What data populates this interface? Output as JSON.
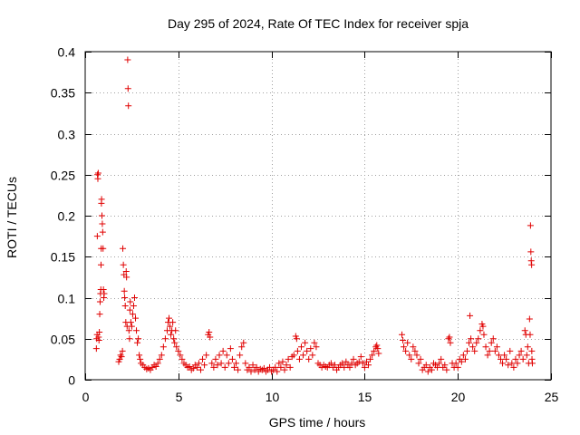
{
  "chart_data": {
    "type": "scatter",
    "title": "Day 295 of 2024, Rate Of TEC Index for receiver spja",
    "xlabel": "GPS time / hours",
    "ylabel": "ROTI / TECUs",
    "xlim": [
      0,
      25
    ],
    "ylim": [
      0,
      0.4
    ],
    "xticks": [
      0,
      5,
      10,
      15,
      20,
      25
    ],
    "xtick_labels": [
      "0",
      "5",
      "10",
      "15",
      "20",
      "25"
    ],
    "yticks": [
      0,
      0.05,
      0.1,
      0.15,
      0.2,
      0.25,
      0.3,
      0.35,
      0.4
    ],
    "ytick_labels": [
      "0",
      "0.05",
      "0.1",
      "0.15",
      "0.2",
      "0.25",
      "0.3",
      "0.35",
      "0.4"
    ],
    "grid": true,
    "marker": "+",
    "marker_color": "#e00000",
    "series": [
      {
        "name": "ROTI",
        "points": [
          [
            0.6,
            0.038
          ],
          [
            0.62,
            0.05
          ],
          [
            0.64,
            0.055
          ],
          [
            0.65,
            0.175
          ],
          [
            0.66,
            0.25
          ],
          [
            0.68,
            0.245
          ],
          [
            0.7,
            0.252
          ],
          [
            0.72,
            0.052
          ],
          [
            0.74,
            0.048
          ],
          [
            0.76,
            0.058
          ],
          [
            0.78,
            0.08
          ],
          [
            0.8,
            0.095
          ],
          [
            0.82,
            0.105
          ],
          [
            0.84,
            0.11
          ],
          [
            0.85,
            0.14
          ],
          [
            0.86,
            0.16
          ],
          [
            0.87,
            0.215
          ],
          [
            0.88,
            0.22
          ],
          [
            0.9,
            0.2
          ],
          [
            0.92,
            0.19
          ],
          [
            0.94,
            0.18
          ],
          [
            0.96,
            0.16
          ],
          [
            0.98,
            0.11
          ],
          [
            1.0,
            0.1
          ],
          [
            1.02,
            0.105
          ],
          [
            1.8,
            0.022
          ],
          [
            1.85,
            0.025
          ],
          [
            1.9,
            0.03
          ],
          [
            1.95,
            0.028
          ],
          [
            2.0,
            0.035
          ],
          [
            2.02,
            0.16
          ],
          [
            2.05,
            0.14
          ],
          [
            2.08,
            0.128
          ],
          [
            2.1,
            0.108
          ],
          [
            2.12,
            0.1
          ],
          [
            2.15,
            0.09
          ],
          [
            2.18,
            0.07
          ],
          [
            2.2,
            0.132
          ],
          [
            2.22,
            0.125
          ],
          [
            2.25,
            0.065
          ],
          [
            2.28,
            0.39
          ],
          [
            2.3,
            0.355
          ],
          [
            2.32,
            0.334
          ],
          [
            2.35,
            0.06
          ],
          [
            2.38,
            0.05
          ],
          [
            2.4,
            0.085
          ],
          [
            2.42,
            0.095
          ],
          [
            2.45,
            0.07
          ],
          [
            2.5,
            0.065
          ],
          [
            2.55,
            0.08
          ],
          [
            2.6,
            0.09
          ],
          [
            2.65,
            0.1
          ],
          [
            2.7,
            0.075
          ],
          [
            2.75,
            0.06
          ],
          [
            2.8,
            0.045
          ],
          [
            2.85,
            0.05
          ],
          [
            2.9,
            0.03
          ],
          [
            2.95,
            0.025
          ],
          [
            3.0,
            0.02
          ],
          [
            3.1,
            0.018
          ],
          [
            3.2,
            0.015
          ],
          [
            3.3,
            0.013
          ],
          [
            3.4,
            0.014
          ],
          [
            3.5,
            0.012
          ],
          [
            3.6,
            0.015
          ],
          [
            3.7,
            0.018
          ],
          [
            3.8,
            0.016
          ],
          [
            3.9,
            0.02
          ],
          [
            4.0,
            0.025
          ],
          [
            4.1,
            0.03
          ],
          [
            4.2,
            0.04
          ],
          [
            4.3,
            0.05
          ],
          [
            4.4,
            0.06
          ],
          [
            4.45,
            0.07
          ],
          [
            4.5,
            0.075
          ],
          [
            4.55,
            0.065
          ],
          [
            4.6,
            0.055
          ],
          [
            4.65,
            0.06
          ],
          [
            4.7,
            0.07
          ],
          [
            4.75,
            0.05
          ],
          [
            4.8,
            0.045
          ],
          [
            4.85,
            0.06
          ],
          [
            4.9,
            0.04
          ],
          [
            5.0,
            0.035
          ],
          [
            5.1,
            0.03
          ],
          [
            5.2,
            0.025
          ],
          [
            5.3,
            0.02
          ],
          [
            5.4,
            0.018
          ],
          [
            5.5,
            0.015
          ],
          [
            5.6,
            0.016
          ],
          [
            5.7,
            0.012
          ],
          [
            5.8,
            0.014
          ],
          [
            5.9,
            0.018
          ],
          [
            6.0,
            0.015
          ],
          [
            6.1,
            0.02
          ],
          [
            6.2,
            0.012
          ],
          [
            6.3,
            0.025
          ],
          [
            6.4,
            0.018
          ],
          [
            6.5,
            0.03
          ],
          [
            6.6,
            0.055
          ],
          [
            6.65,
            0.058
          ],
          [
            6.7,
            0.052
          ],
          [
            6.8,
            0.02
          ],
          [
            6.9,
            0.015
          ],
          [
            7.0,
            0.025
          ],
          [
            7.1,
            0.018
          ],
          [
            7.2,
            0.03
          ],
          [
            7.3,
            0.02
          ],
          [
            7.4,
            0.035
          ],
          [
            7.5,
            0.015
          ],
          [
            7.6,
            0.03
          ],
          [
            7.7,
            0.02
          ],
          [
            7.8,
            0.038
          ],
          [
            7.9,
            0.025
          ],
          [
            8.0,
            0.015
          ],
          [
            8.1,
            0.02
          ],
          [
            8.2,
            0.012
          ],
          [
            8.3,
            0.03
          ],
          [
            8.4,
            0.04
          ],
          [
            8.5,
            0.045
          ],
          [
            8.6,
            0.02
          ],
          [
            8.7,
            0.012
          ],
          [
            8.8,
            0.015
          ],
          [
            8.9,
            0.01
          ],
          [
            9.0,
            0.018
          ],
          [
            9.1,
            0.012
          ],
          [
            9.2,
            0.015
          ],
          [
            9.3,
            0.01
          ],
          [
            9.4,
            0.013
          ],
          [
            9.5,
            0.012
          ],
          [
            9.6,
            0.014
          ],
          [
            9.7,
            0.01
          ],
          [
            9.8,
            0.012
          ],
          [
            9.9,
            0.015
          ],
          [
            10.0,
            0.01
          ],
          [
            10.1,
            0.012
          ],
          [
            10.2,
            0.015
          ],
          [
            10.3,
            0.01
          ],
          [
            10.4,
            0.02
          ],
          [
            10.5,
            0.015
          ],
          [
            10.6,
            0.022
          ],
          [
            10.7,
            0.012
          ],
          [
            10.8,
            0.018
          ],
          [
            10.9,
            0.025
          ],
          [
            11.0,
            0.015
          ],
          [
            11.1,
            0.028
          ],
          [
            11.2,
            0.03
          ],
          [
            11.3,
            0.053
          ],
          [
            11.35,
            0.05
          ],
          [
            11.4,
            0.035
          ],
          [
            11.5,
            0.025
          ],
          [
            11.6,
            0.04
          ],
          [
            11.7,
            0.03
          ],
          [
            11.8,
            0.045
          ],
          [
            11.9,
            0.035
          ],
          [
            12.0,
            0.025
          ],
          [
            12.1,
            0.038
          ],
          [
            12.2,
            0.03
          ],
          [
            12.3,
            0.045
          ],
          [
            12.4,
            0.04
          ],
          [
            12.5,
            0.02
          ],
          [
            12.6,
            0.018
          ],
          [
            12.7,
            0.015
          ],
          [
            12.8,
            0.018
          ],
          [
            12.9,
            0.016
          ],
          [
            13.0,
            0.015
          ],
          [
            13.1,
            0.018
          ],
          [
            13.2,
            0.02
          ],
          [
            13.3,
            0.015
          ],
          [
            13.4,
            0.018
          ],
          [
            13.5,
            0.012
          ],
          [
            13.6,
            0.015
          ],
          [
            13.7,
            0.018
          ],
          [
            13.8,
            0.02
          ],
          [
            13.9,
            0.015
          ],
          [
            14.0,
            0.022
          ],
          [
            14.1,
            0.018
          ],
          [
            14.2,
            0.015
          ],
          [
            14.3,
            0.02
          ],
          [
            14.4,
            0.025
          ],
          [
            14.5,
            0.018
          ],
          [
            14.6,
            0.02
          ],
          [
            14.7,
            0.022
          ],
          [
            14.8,
            0.028
          ],
          [
            14.9,
            0.02
          ],
          [
            15.0,
            0.015
          ],
          [
            15.1,
            0.022
          ],
          [
            15.2,
            0.018
          ],
          [
            15.3,
            0.025
          ],
          [
            15.4,
            0.03
          ],
          [
            15.5,
            0.035
          ],
          [
            15.6,
            0.04
          ],
          [
            15.65,
            0.042
          ],
          [
            15.7,
            0.038
          ],
          [
            15.75,
            0.032
          ],
          [
            17.0,
            0.055
          ],
          [
            17.05,
            0.048
          ],
          [
            17.1,
            0.04
          ],
          [
            17.2,
            0.035
          ],
          [
            17.3,
            0.045
          ],
          [
            17.4,
            0.03
          ],
          [
            17.5,
            0.025
          ],
          [
            17.6,
            0.04
          ],
          [
            17.7,
            0.035
          ],
          [
            17.8,
            0.03
          ],
          [
            17.9,
            0.02
          ],
          [
            18.0,
            0.025
          ],
          [
            18.1,
            0.012
          ],
          [
            18.2,
            0.015
          ],
          [
            18.3,
            0.018
          ],
          [
            18.4,
            0.01
          ],
          [
            18.5,
            0.015
          ],
          [
            18.6,
            0.012
          ],
          [
            18.7,
            0.02
          ],
          [
            18.8,
            0.018
          ],
          [
            18.9,
            0.015
          ],
          [
            19.0,
            0.02
          ],
          [
            19.1,
            0.025
          ],
          [
            19.2,
            0.015
          ],
          [
            19.3,
            0.018
          ],
          [
            19.4,
            0.012
          ],
          [
            19.5,
            0.05
          ],
          [
            19.55,
            0.052
          ],
          [
            19.6,
            0.045
          ],
          [
            19.7,
            0.02
          ],
          [
            19.8,
            0.015
          ],
          [
            19.9,
            0.02
          ],
          [
            20.0,
            0.015
          ],
          [
            20.1,
            0.025
          ],
          [
            20.2,
            0.022
          ],
          [
            20.3,
            0.03
          ],
          [
            20.4,
            0.025
          ],
          [
            20.5,
            0.035
          ],
          [
            20.6,
            0.045
          ],
          [
            20.65,
            0.078
          ],
          [
            20.7,
            0.05
          ],
          [
            20.8,
            0.04
          ],
          [
            20.9,
            0.035
          ],
          [
            21.0,
            0.045
          ],
          [
            21.1,
            0.05
          ],
          [
            21.2,
            0.06
          ],
          [
            21.3,
            0.068
          ],
          [
            21.35,
            0.065
          ],
          [
            21.4,
            0.055
          ],
          [
            21.5,
            0.04
          ],
          [
            21.6,
            0.03
          ],
          [
            21.7,
            0.035
          ],
          [
            21.8,
            0.045
          ],
          [
            21.9,
            0.05
          ],
          [
            22.0,
            0.035
          ],
          [
            22.1,
            0.04
          ],
          [
            22.2,
            0.03
          ],
          [
            22.3,
            0.025
          ],
          [
            22.4,
            0.02
          ],
          [
            22.5,
            0.03
          ],
          [
            22.6,
            0.025
          ],
          [
            22.7,
            0.018
          ],
          [
            22.8,
            0.035
          ],
          [
            22.9,
            0.02
          ],
          [
            23.0,
            0.015
          ],
          [
            23.1,
            0.025
          ],
          [
            23.2,
            0.02
          ],
          [
            23.3,
            0.03
          ],
          [
            23.4,
            0.035
          ],
          [
            23.5,
            0.025
          ],
          [
            23.6,
            0.06
          ],
          [
            23.65,
            0.055
          ],
          [
            23.7,
            0.03
          ],
          [
            23.75,
            0.04
          ],
          [
            23.8,
            0.02
          ],
          [
            23.85,
            0.074
          ],
          [
            23.88,
            0.055
          ],
          [
            23.9,
            0.188
          ],
          [
            23.92,
            0.156
          ],
          [
            23.94,
            0.145
          ],
          [
            23.96,
            0.14
          ],
          [
            23.97,
            0.035
          ],
          [
            23.98,
            0.025
          ],
          [
            24.0,
            0.02
          ]
        ]
      }
    ]
  }
}
